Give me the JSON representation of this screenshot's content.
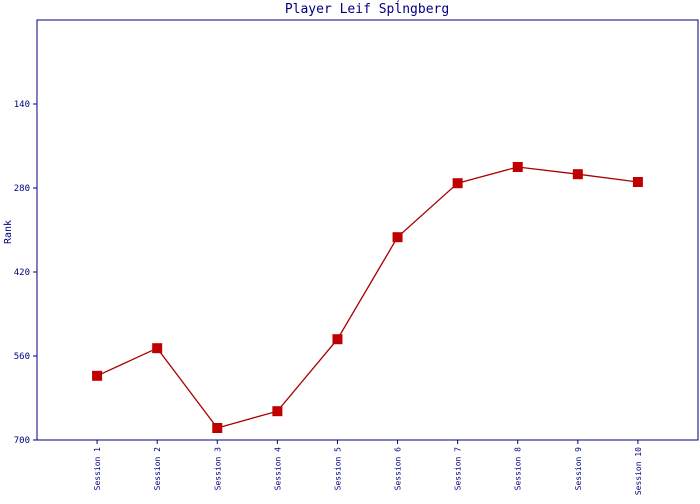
{
  "chart_data": {
    "type": "line",
    "title": "Player Leif Spĺngberg",
    "y_label": "Rank",
    "categories": [
      "Session 1",
      "Session 2",
      "Session 3",
      "Session 4",
      "Session 5",
      "Session 6",
      "Session 7",
      "Session 8",
      "Session 9",
      "Session 10"
    ],
    "series": [
      {
        "name": "Rank",
        "color": "#aa0000",
        "marker_color": "#c00000",
        "values": [
          593,
          547,
          680,
          652,
          532,
          362,
          272,
          245,
          257,
          270
        ]
      }
    ],
    "ylim": [
      0,
      700
    ],
    "y_reversed": true,
    "yticks": [
      140,
      280,
      420,
      560,
      700
    ],
    "grid": false
  }
}
